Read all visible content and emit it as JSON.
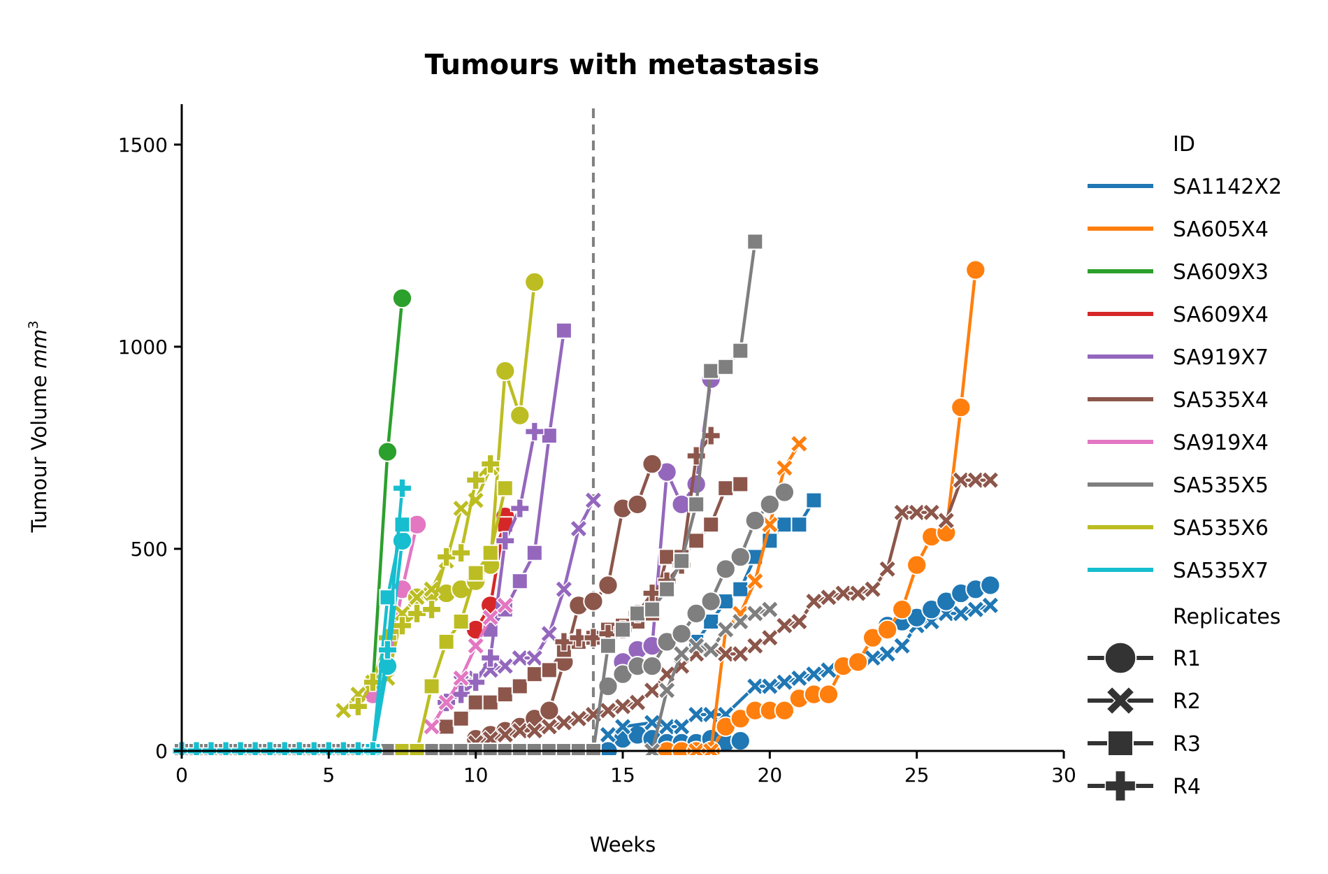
{
  "chart_data": {
    "type": "line",
    "title": "Tumours with metastasis",
    "xlabel": "Weeks",
    "ylabel": "Tumour Volume",
    "ylabel_unit": "mm",
    "ylabel_unit_exp": "3",
    "xlim": [
      0,
      30
    ],
    "ylim": [
      0,
      1600
    ],
    "xticks": [
      0,
      5,
      10,
      15,
      20,
      25,
      30
    ],
    "yticks": [
      0,
      500,
      1000,
      1500
    ],
    "grid": false,
    "legend_position": "right",
    "reference_line": {
      "x": 14,
      "style": "dashed",
      "color": "#808080"
    },
    "hue_title": "ID",
    "style_title": "Replicates",
    "ids": [
      {
        "name": "SA1142X2",
        "color": "#1f77b4"
      },
      {
        "name": "SA605X4",
        "color": "#ff7f0e"
      },
      {
        "name": "SA609X3",
        "color": "#2ca02c"
      },
      {
        "name": "SA609X4",
        "color": "#d62728"
      },
      {
        "name": "SA919X7",
        "color": "#9467bd"
      },
      {
        "name": "SA535X4",
        "color": "#8c564b"
      },
      {
        "name": "SA919X4",
        "color": "#e377c2"
      },
      {
        "name": "SA535X5",
        "color": "#7f7f7f"
      },
      {
        "name": "SA535X6",
        "color": "#bcbd22"
      },
      {
        "name": "SA535X7",
        "color": "#17becf"
      }
    ],
    "replicates": [
      {
        "name": "R1",
        "marker": "circle"
      },
      {
        "name": "R2",
        "marker": "x"
      },
      {
        "name": "R3",
        "marker": "square"
      },
      {
        "name": "R4",
        "marker": "plus"
      }
    ],
    "series": [
      {
        "id": "SA1142X2",
        "replicate": "R1",
        "x": [
          14.5,
          15,
          15.5,
          16,
          16.5,
          17,
          17.5,
          18,
          18.5,
          19
        ],
        "y": [
          0,
          30,
          40,
          30,
          20,
          20,
          20,
          30,
          20,
          25
        ]
      },
      {
        "id": "SA1142X2",
        "replicate": "R2",
        "x": [
          14.5,
          15,
          16,
          16.5,
          17,
          17.5,
          18,
          18.5,
          19.5,
          20,
          20.5,
          21,
          21.5,
          22,
          22.5,
          23,
          23.5,
          24,
          24.5,
          25,
          25.5,
          26,
          26.5,
          27,
          27.5
        ],
        "y": [
          40,
          60,
          70,
          60,
          60,
          90,
          90,
          90,
          160,
          160,
          170,
          180,
          190,
          200,
          210,
          220,
          230,
          240,
          260,
          310,
          320,
          340,
          340,
          350,
          360
        ]
      },
      {
        "id": "SA1142X2",
        "replicate": "R3",
        "x": [
          17.5,
          18,
          18.5,
          19,
          19.5,
          20,
          20.5,
          21,
          21.5
        ],
        "y": [
          270,
          320,
          370,
          400,
          480,
          520,
          560,
          560,
          620
        ]
      },
      {
        "id": "SA1142X2",
        "replicate": "R1",
        "x": [
          24,
          24.5,
          25,
          25.5,
          26,
          26.5,
          27,
          27.5
        ],
        "y": [
          310,
          320,
          330,
          350,
          370,
          390,
          400,
          410
        ]
      },
      {
        "id": "SA605X4",
        "replicate": "R1",
        "x": [
          16.5,
          17,
          17.5,
          18,
          18.5,
          19,
          19.5,
          20,
          20.5,
          21,
          21.5,
          22,
          22.5,
          23,
          23.5,
          24,
          24.5,
          25,
          25.5,
          26,
          26.5,
          27
        ],
        "y": [
          0,
          0,
          0,
          0,
          60,
          80,
          100,
          100,
          100,
          130,
          140,
          140,
          210,
          220,
          280,
          300,
          350,
          460,
          530,
          540,
          850,
          1190
        ]
      },
      {
        "id": "SA605X4",
        "replicate": "R2",
        "x": [
          17.5,
          18,
          18.5,
          19,
          19.5,
          20,
          20.5,
          21
        ],
        "y": [
          0,
          0,
          300,
          340,
          420,
          560,
          700,
          760
        ]
      },
      {
        "id": "SA609X3",
        "replicate": "R1",
        "x": [
          6.5,
          7,
          7.5
        ],
        "y": [
          160,
          740,
          1120
        ]
      },
      {
        "id": "SA609X4",
        "replicate": "R1",
        "x": [
          10,
          10.5,
          11
        ],
        "y": [
          300,
          360,
          580
        ]
      },
      {
        "id": "SA609X4",
        "replicate": "R3",
        "x": [
          10.5,
          11
        ],
        "y": [
          470,
          560
        ]
      },
      {
        "id": "SA919X7",
        "replicate": "R1",
        "x": [
          15,
          15.5,
          16,
          16.5,
          17,
          17.5,
          18
        ],
        "y": [
          220,
          250,
          260,
          690,
          610,
          660,
          920
        ]
      },
      {
        "id": "SA919X7",
        "replicate": "R2",
        "x": [
          8.5,
          9,
          9.5,
          10,
          10.5,
          11,
          11.5,
          12,
          12.5,
          13,
          13.5,
          14
        ],
        "y": [
          60,
          120,
          170,
          180,
          200,
          210,
          230,
          230,
          290,
          400,
          550,
          620
        ]
      },
      {
        "id": "SA919X7",
        "replicate": "R3",
        "x": [
          10.5,
          11,
          11.5,
          12,
          12.5,
          13
        ],
        "y": [
          300,
          350,
          420,
          490,
          780,
          1040
        ]
      },
      {
        "id": "SA919X7",
        "replicate": "R4",
        "x": [
          9,
          9.5,
          10,
          10.5,
          11,
          11.5,
          12
        ],
        "y": [
          120,
          140,
          170,
          230,
          520,
          600,
          790
        ]
      },
      {
        "id": "SA535X4",
        "replicate": "R1",
        "x": [
          10,
          10.5,
          11,
          11.5,
          12,
          12.5,
          13,
          13.5,
          14,
          14.5,
          15,
          15.5,
          16
        ],
        "y": [
          30,
          40,
          50,
          60,
          80,
          100,
          220,
          360,
          370,
          410,
          600,
          610,
          710
        ]
      },
      {
        "id": "SA535X4",
        "replicate": "R2",
        "x": [
          10,
          10.5,
          11,
          11.5,
          12,
          12.5,
          13,
          13.5,
          14,
          14.5,
          15,
          15.5,
          16,
          16.5,
          17,
          17.5,
          18,
          18.5,
          19,
          19.5,
          20,
          20.5,
          21,
          21.5,
          22,
          22.5,
          23,
          23.5,
          24,
          24.5,
          25,
          25.5,
          26,
          26.5,
          27,
          27.5
        ],
        "y": [
          20,
          30,
          40,
          50,
          50,
          60,
          70,
          80,
          90,
          100,
          110,
          120,
          150,
          190,
          210,
          240,
          250,
          240,
          240,
          260,
          280,
          310,
          320,
          370,
          380,
          390,
          390,
          400,
          450,
          590,
          590,
          590,
          570,
          670,
          670,
          670
        ]
      },
      {
        "id": "SA535X4",
        "replicate": "R3",
        "x": [
          9,
          9.5,
          10,
          10.5,
          11,
          11.5,
          12,
          12.5,
          13,
          13.5,
          14,
          14.5,
          15,
          15.5,
          16,
          16.5,
          17,
          17.5,
          18,
          18.5,
          19
        ],
        "y": [
          60,
          80,
          120,
          120,
          140,
          160,
          190,
          200,
          250,
          270,
          280,
          300,
          310,
          320,
          340,
          480,
          480,
          520,
          560,
          650,
          660
        ]
      },
      {
        "id": "SA535X4",
        "replicate": "R4",
        "x": [
          13,
          13.5,
          14,
          14.5,
          15,
          15.5,
          16,
          16.5,
          17,
          17.5,
          18
        ],
        "y": [
          270,
          280,
          280,
          290,
          300,
          340,
          390,
          420,
          460,
          730,
          780
        ]
      },
      {
        "id": "SA919X4",
        "replicate": "R1",
        "x": [
          6.5,
          7,
          7.5,
          8
        ],
        "y": [
          140,
          200,
          400,
          560
        ]
      },
      {
        "id": "SA919X4",
        "replicate": "R2",
        "x": [
          8.5,
          9,
          9.5,
          10,
          10.5,
          11
        ],
        "y": [
          60,
          120,
          180,
          260,
          330,
          360
        ]
      },
      {
        "id": "SA535X5",
        "replicate": "R1",
        "x": [
          14.5,
          15,
          15.5,
          16,
          16.5,
          17,
          17.5,
          18,
          18.5,
          19,
          19.5,
          20,
          20.5
        ],
        "y": [
          160,
          190,
          210,
          210,
          270,
          290,
          340,
          370,
          450,
          480,
          570,
          610,
          640
        ]
      },
      {
        "id": "SA535X5",
        "replicate": "R2",
        "x": [
          16,
          16.5,
          17,
          17.5,
          18,
          18.5,
          19,
          19.5,
          20
        ],
        "y": [
          0,
          150,
          240,
          260,
          250,
          300,
          320,
          340,
          350
        ]
      },
      {
        "id": "SA535X5",
        "replicate": "R3",
        "x": [
          0,
          0.5,
          1,
          1.5,
          2,
          2.5,
          3,
          3.5,
          4,
          4.5,
          5,
          5.5,
          6,
          6.5,
          7,
          7.5,
          8,
          8.5,
          9,
          9.5,
          10,
          10.5,
          11,
          11.5,
          12,
          12.5,
          13,
          13.5,
          14,
          14.5,
          15,
          15.5,
          16,
          16.5,
          17,
          17.5,
          18,
          18.5,
          19,
          19.5
        ],
        "y": [
          0,
          0,
          0,
          0,
          0,
          0,
          0,
          0,
          0,
          0,
          0,
          0,
          0,
          0,
          0,
          0,
          0,
          0,
          0,
          0,
          0,
          0,
          0,
          0,
          0,
          0,
          0,
          0,
          0,
          260,
          300,
          340,
          350,
          400,
          470,
          610,
          940,
          950,
          990,
          1260
        ]
      },
      {
        "id": "SA535X6",
        "replicate": "R1",
        "x": [
          8,
          8.5,
          9,
          9.5,
          10,
          10.5,
          11,
          11.5,
          12
        ],
        "y": [
          380,
          390,
          390,
          400,
          420,
          460,
          940,
          830,
          1160
        ]
      },
      {
        "id": "SA535X6",
        "replicate": "R2",
        "x": [
          5.5,
          6,
          6.5,
          7,
          7.5,
          8,
          8.5,
          9,
          9.5,
          10,
          10.5
        ],
        "y": [
          100,
          140,
          170,
          180,
          340,
          380,
          400,
          470,
          600,
          620,
          700
        ]
      },
      {
        "id": "SA535X6",
        "replicate": "R3",
        "x": [
          7.5,
          8,
          8.5,
          9,
          9.5,
          10,
          10.5,
          11
        ],
        "y": [
          0,
          0,
          160,
          270,
          320,
          440,
          490,
          650
        ]
      },
      {
        "id": "SA535X6",
        "replicate": "R4",
        "x": [
          6,
          6.5,
          7,
          7.5,
          8,
          8.5,
          9,
          9.5,
          10,
          10.5
        ],
        "y": [
          110,
          170,
          280,
          310,
          340,
          350,
          480,
          490,
          670,
          710
        ]
      },
      {
        "id": "SA535X7",
        "replicate": "R1",
        "x": [
          6.5,
          7,
          7.5
        ],
        "y": [
          0,
          210,
          520
        ]
      },
      {
        "id": "SA535X7",
        "replicate": "R3",
        "x": [
          6.5,
          7,
          7.5
        ],
        "y": [
          0,
          380,
          560
        ]
      },
      {
        "id": "SA535X7",
        "replicate": "R4",
        "x": [
          0,
          0.5,
          1,
          1.5,
          2,
          2.5,
          3,
          3.5,
          4,
          4.5,
          5,
          5.5,
          6,
          6.5,
          7,
          7.5
        ],
        "y": [
          0,
          0,
          0,
          0,
          0,
          0,
          0,
          0,
          0,
          0,
          0,
          0,
          0,
          0,
          250,
          650
        ]
      }
    ]
  }
}
